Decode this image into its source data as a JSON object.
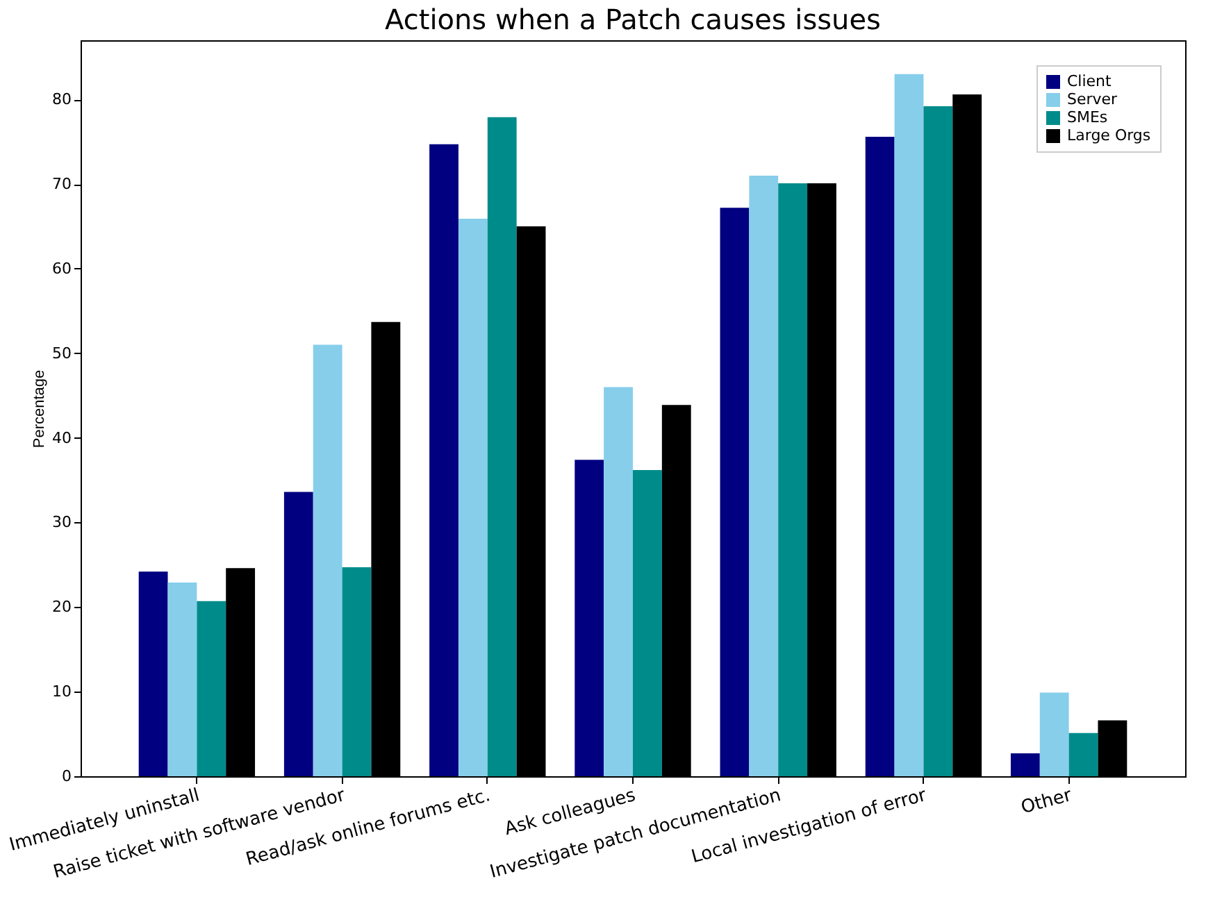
{
  "chart_data": {
    "type": "bar",
    "title": "Actions when a Patch causes issues",
    "ylabel": "Percentage",
    "categories": [
      "Immediately uninstall",
      "Raise ticket with software vendor",
      "Read/ask online forums etc.",
      "Ask colleagues",
      "Investigate patch documentation",
      "Local investigation of error",
      "Other"
    ],
    "series": [
      {
        "name": "Client",
        "color": "#000080",
        "values": [
          24.2,
          33.6,
          74.7,
          37.4,
          67.2,
          75.6,
          2.7
        ]
      },
      {
        "name": "Server",
        "color": "#87ceeb",
        "values": [
          22.9,
          51.0,
          65.9,
          46.0,
          71.0,
          83.0,
          9.9
        ]
      },
      {
        "name": "SMEs",
        "color": "#008b8b",
        "values": [
          20.7,
          24.7,
          77.9,
          36.2,
          70.1,
          79.2,
          5.1
        ]
      },
      {
        "name": "Large Orgs",
        "color": "#000000",
        "values": [
          24.6,
          53.7,
          65.0,
          43.9,
          70.1,
          80.6,
          6.6
        ]
      }
    ],
    "ylim": [
      0,
      87
    ],
    "yticks": [
      0,
      10,
      20,
      30,
      40,
      50,
      60,
      70,
      80
    ],
    "legend": "top right",
    "grid": false
  }
}
